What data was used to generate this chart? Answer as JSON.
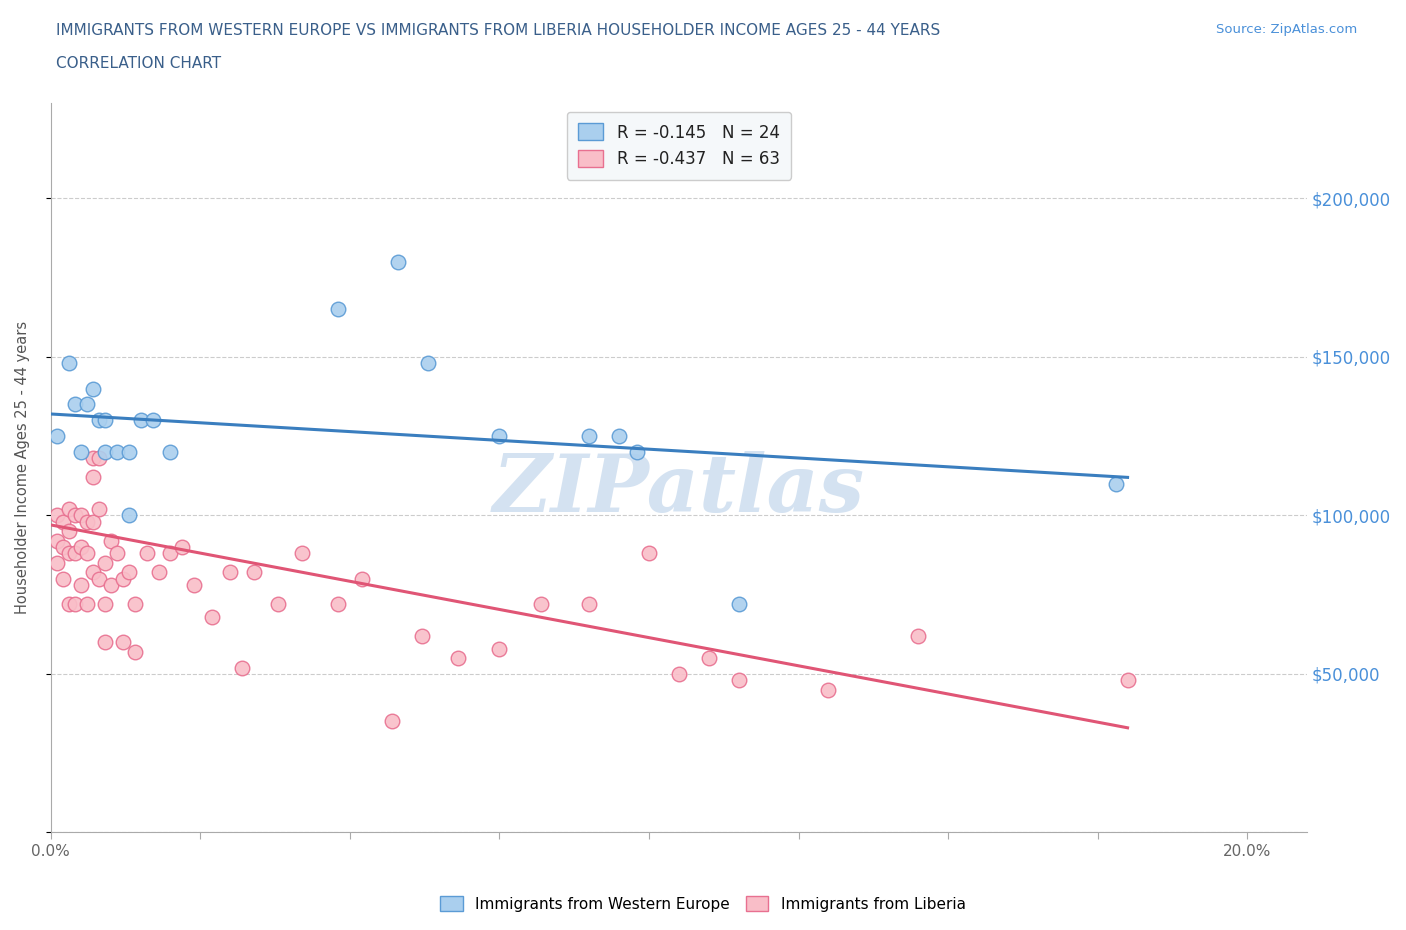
{
  "title_line1": "IMMIGRANTS FROM WESTERN EUROPE VS IMMIGRANTS FROM LIBERIA HOUSEHOLDER INCOME AGES 25 - 44 YEARS",
  "title_line2": "CORRELATION CHART",
  "source_text": "Source: ZipAtlas.com",
  "ylabel": "Householder Income Ages 25 - 44 years",
  "xlim": [
    0.0,
    0.21
  ],
  "ylim": [
    0,
    230000
  ],
  "yticks": [
    0,
    50000,
    100000,
    150000,
    200000
  ],
  "xticks": [
    0.0,
    0.025,
    0.05,
    0.075,
    0.1,
    0.125,
    0.15,
    0.175,
    0.2
  ],
  "xtick_labels": [
    "0.0%",
    "",
    "",
    "",
    "",
    "",
    "",
    "",
    "20.0%"
  ],
  "legend_r1": "R = -0.145   N = 24",
  "legend_r2": "R = -0.437   N = 63",
  "blue_fill": "#aacfee",
  "blue_edge": "#5b9bd5",
  "pink_fill": "#f9bec8",
  "pink_edge": "#e87090",
  "blue_line_color": "#3a7ebf",
  "pink_line_color": "#e05575",
  "title_color": "#3a5f8a",
  "watermark_color": "#b8cfe8",
  "right_tick_color": "#4a90d9",
  "right_tick_labels": [
    "",
    "$50,000",
    "$100,000",
    "$150,000",
    "$200,000"
  ],
  "source_color": "#4a90d9",
  "grid_color": "#cccccc",
  "watermark_text": "ZIPatlas",
  "blue_scatter_x": [
    0.001,
    0.003,
    0.004,
    0.005,
    0.006,
    0.007,
    0.008,
    0.009,
    0.009,
    0.011,
    0.013,
    0.013,
    0.015,
    0.017,
    0.02,
    0.048,
    0.058,
    0.063,
    0.075,
    0.09,
    0.095,
    0.098,
    0.115,
    0.178
  ],
  "blue_scatter_y": [
    125000,
    148000,
    135000,
    120000,
    135000,
    140000,
    130000,
    130000,
    120000,
    120000,
    120000,
    100000,
    130000,
    130000,
    120000,
    165000,
    180000,
    148000,
    125000,
    125000,
    125000,
    120000,
    72000,
    110000
  ],
  "pink_scatter_x": [
    0.001,
    0.001,
    0.001,
    0.002,
    0.002,
    0.002,
    0.003,
    0.003,
    0.003,
    0.003,
    0.004,
    0.004,
    0.004,
    0.005,
    0.005,
    0.005,
    0.006,
    0.006,
    0.006,
    0.007,
    0.007,
    0.007,
    0.007,
    0.008,
    0.008,
    0.008,
    0.009,
    0.009,
    0.009,
    0.01,
    0.01,
    0.011,
    0.012,
    0.012,
    0.013,
    0.014,
    0.014,
    0.016,
    0.018,
    0.02,
    0.022,
    0.024,
    0.027,
    0.03,
    0.032,
    0.034,
    0.038,
    0.042,
    0.048,
    0.052,
    0.057,
    0.062,
    0.068,
    0.075,
    0.082,
    0.09,
    0.1,
    0.105,
    0.11,
    0.115,
    0.13,
    0.145,
    0.18
  ],
  "pink_scatter_y": [
    100000,
    92000,
    85000,
    98000,
    90000,
    80000,
    102000,
    95000,
    88000,
    72000,
    100000,
    88000,
    72000,
    100000,
    90000,
    78000,
    98000,
    88000,
    72000,
    118000,
    112000,
    98000,
    82000,
    118000,
    102000,
    80000,
    85000,
    72000,
    60000,
    92000,
    78000,
    88000,
    80000,
    60000,
    82000,
    72000,
    57000,
    88000,
    82000,
    88000,
    90000,
    78000,
    68000,
    82000,
    52000,
    82000,
    72000,
    88000,
    72000,
    80000,
    35000,
    62000,
    55000,
    58000,
    72000,
    72000,
    88000,
    50000,
    55000,
    48000,
    45000,
    62000,
    48000
  ],
  "blue_trend_x": [
    0.0,
    0.18
  ],
  "blue_trend_y": [
    132000,
    112000
  ],
  "pink_trend_x": [
    0.0,
    0.18
  ],
  "pink_trend_y": [
    97000,
    33000
  ],
  "legend_box_facecolor": "#f5f8fa"
}
